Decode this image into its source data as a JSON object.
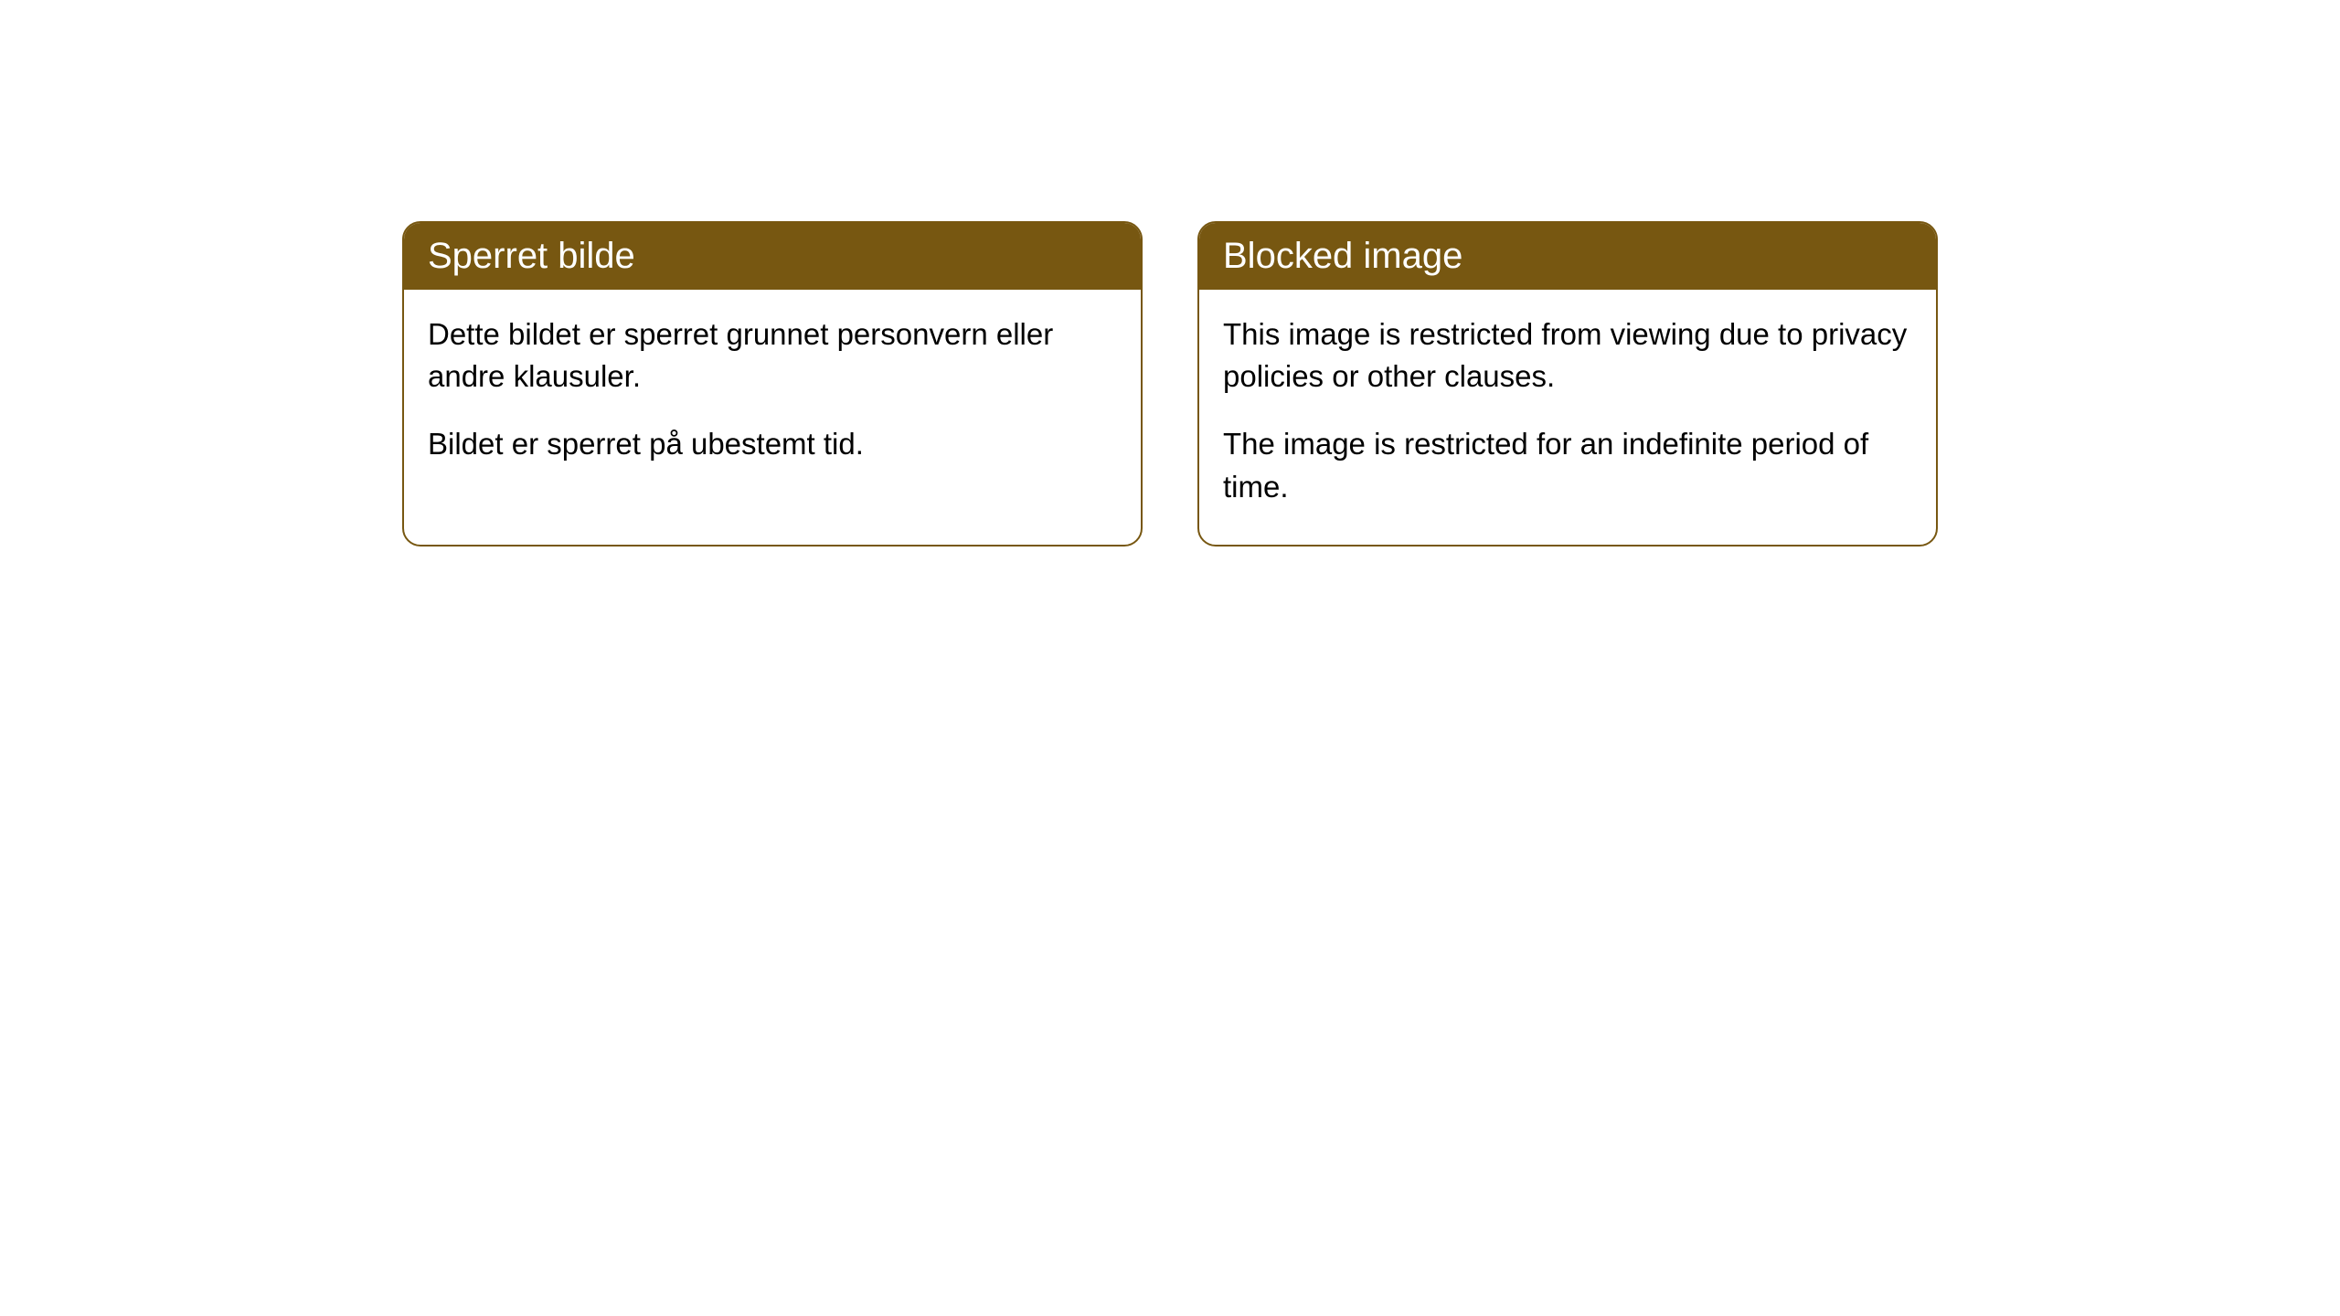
{
  "cards": [
    {
      "title": "Sperret bilde",
      "paragraph1": "Dette bildet er sperret grunnet personvern eller andre klausuler.",
      "paragraph2": "Bildet er sperret på ubestemt tid."
    },
    {
      "title": "Blocked image",
      "paragraph1": "This image is restricted from viewing due to privacy policies or other clauses.",
      "paragraph2": "The image is restricted for an indefinite period of time."
    }
  ],
  "styling": {
    "header_background": "#775711",
    "header_text_color": "#ffffff",
    "border_color": "#775711",
    "body_background": "#ffffff",
    "body_text_color": "#000000",
    "border_radius": 20,
    "title_fontsize": 40,
    "body_fontsize": 33
  }
}
